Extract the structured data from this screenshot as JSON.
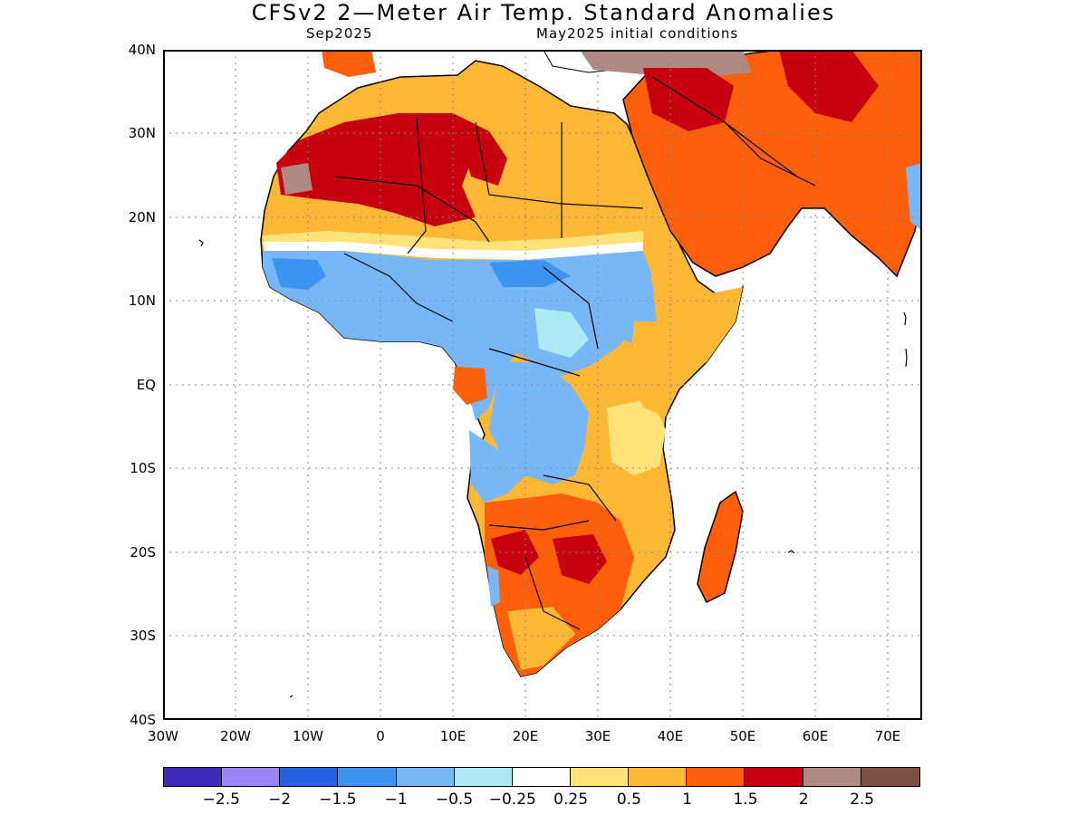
{
  "header": {
    "title": "CFSv2 2—Meter Air Temp. Standard Anomalies",
    "valid_month": "Sep2025",
    "init_conditions": "May2025 initial conditions"
  },
  "axes": {
    "lat_labels": [
      "40N",
      "30N",
      "20N",
      "10N",
      "EQ",
      "10S",
      "20S",
      "30S",
      "40S"
    ],
    "lon_labels": [
      "30W",
      "20W",
      "10W",
      "0",
      "10E",
      "20E",
      "30E",
      "40E",
      "50E",
      "60E",
      "70E"
    ]
  },
  "colorbar": {
    "colors": [
      "#3f2bb7",
      "#9b86f5",
      "#2262e0",
      "#3c93f0",
      "#78b7f5",
      "#aeeaf5",
      "#ffffff",
      "#ffe37a",
      "#ffb835",
      "#ff5e0a",
      "#c70010",
      "#b08a80",
      "#7a5043"
    ],
    "labels": [
      "−2.5",
      "−2",
      "−1.5",
      "−1",
      "−0.5",
      "−0.25",
      "0.25",
      "0.5",
      "1",
      "1.5",
      "2",
      "2.5"
    ]
  }
}
